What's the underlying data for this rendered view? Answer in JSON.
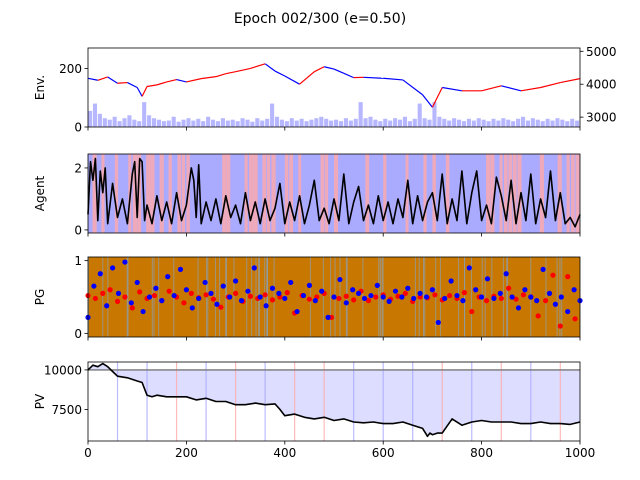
{
  "figure": {
    "title": "Epoch 002/300 (e=0.50)"
  },
  "colors": {
    "price_up": "#ff0000",
    "price_down": "#0000ff",
    "volume": "#aaaaff",
    "agent_line": "#000000",
    "agent_bg_a": "#aaaaff",
    "agent_bg_b": "#ffaaaa",
    "pg_bg": "#c87800",
    "pg_bg_alt": "#8ca0b4",
    "pg_red": "#ff0000",
    "pg_blue": "#0000ff",
    "pv_line": "#000000",
    "pv_fill": "#ddddff",
    "pv_ref": "#777777",
    "pv_vline_blue": "#aaaaff",
    "pv_vline_red": "#ffaaaa"
  },
  "chart_data": [
    {
      "id": "env",
      "type": "line",
      "ylabel": "Env.",
      "xlim": [
        0,
        1000
      ],
      "ylim_left": [
        0,
        270
      ],
      "left_ticks": [
        0,
        200
      ],
      "ylim_right": [
        2700,
        5100
      ],
      "right_ticks": [
        3000,
        4000,
        5000
      ],
      "series": [
        {
          "axis": "right",
          "style": "price",
          "x": [
            0,
            20,
            40,
            60,
            80,
            100,
            110,
            120,
            140,
            160,
            180,
            200,
            230,
            260,
            280,
            300,
            330,
            360,
            380,
            400,
            430,
            460,
            480,
            500,
            520,
            540,
            560,
            600,
            640,
            680,
            700,
            720,
            760,
            800,
            840,
            880,
            920,
            960,
            1000
          ],
          "values": [
            4180,
            4120,
            4220,
            4030,
            4050,
            3900,
            3630,
            3930,
            3980,
            4070,
            4140,
            4070,
            4170,
            4230,
            4320,
            4380,
            4480,
            4620,
            4400,
            4250,
            4000,
            4380,
            4530,
            4460,
            4330,
            4200,
            4210,
            4180,
            4130,
            3680,
            3300,
            3900,
            3800,
            3800,
            3950,
            3800,
            3900,
            4050,
            4170
          ]
        },
        {
          "axis": "left",
          "style": "volume",
          "x": [
            0,
            10,
            20,
            30,
            40,
            50,
            60,
            70,
            80,
            90,
            100,
            110,
            120,
            130,
            140,
            150,
            160,
            170,
            180,
            190,
            200,
            210,
            220,
            230,
            240,
            250,
            260,
            270,
            280,
            290,
            300,
            310,
            320,
            330,
            340,
            350,
            360,
            370,
            380,
            390,
            400,
            410,
            420,
            430,
            440,
            450,
            460,
            470,
            480,
            490,
            500,
            510,
            520,
            530,
            540,
            550,
            560,
            570,
            580,
            590,
            600,
            610,
            620,
            630,
            640,
            650,
            660,
            670,
            680,
            690,
            700,
            710,
            720,
            730,
            740,
            750,
            760,
            770,
            780,
            790,
            800,
            810,
            820,
            830,
            840,
            850,
            860,
            870,
            880,
            890,
            900,
            910,
            920,
            930,
            940,
            950,
            960,
            970,
            980,
            990
          ],
          "values": [
            55,
            80,
            45,
            30,
            25,
            35,
            20,
            30,
            40,
            25,
            20,
            85,
            40,
            30,
            25,
            20,
            22,
            35,
            18,
            25,
            30,
            22,
            28,
            20,
            35,
            25,
            20,
            30,
            22,
            25,
            20,
            30,
            25,
            18,
            30,
            22,
            28,
            80,
            35,
            25,
            20,
            30,
            22,
            28,
            20,
            25,
            30,
            35,
            28,
            22,
            25,
            20,
            30,
            22,
            28,
            85,
            30,
            35,
            25,
            20,
            28,
            22,
            30,
            25,
            35,
            20,
            28,
            80,
            30,
            25,
            85,
            35,
            28,
            22,
            30,
            25,
            20,
            28,
            22,
            30,
            25,
            20,
            28,
            22,
            30,
            25,
            20,
            28,
            35,
            22,
            30,
            25,
            20,
            28,
            22,
            30,
            25,
            20,
            28,
            22
          ]
        }
      ]
    },
    {
      "id": "agent",
      "type": "line",
      "ylabel": "Agent",
      "xlim": [
        0,
        1000
      ],
      "ylim": [
        -0.1,
        2.45
      ],
      "yticks": [
        0,
        2
      ],
      "series": [
        {
          "style": "agent",
          "x": [
            0,
            5,
            10,
            15,
            20,
            25,
            30,
            35,
            40,
            50,
            60,
            70,
            80,
            90,
            95,
            100,
            105,
            110,
            115,
            120,
            130,
            140,
            150,
            160,
            170,
            180,
            190,
            200,
            210,
            215,
            220,
            225,
            230,
            240,
            250,
            260,
            270,
            280,
            290,
            300,
            310,
            320,
            330,
            340,
            350,
            360,
            370,
            380,
            390,
            400,
            410,
            420,
            430,
            440,
            450,
            460,
            470,
            480,
            490,
            500,
            510,
            520,
            530,
            540,
            550,
            560,
            570,
            580,
            590,
            600,
            610,
            620,
            630,
            640,
            650,
            660,
            670,
            680,
            690,
            700,
            710,
            720,
            730,
            740,
            750,
            760,
            770,
            780,
            790,
            800,
            810,
            820,
            830,
            840,
            850,
            860,
            870,
            880,
            890,
            900,
            910,
            920,
            930,
            940,
            950,
            960,
            970,
            980,
            990,
            1000
          ],
          "values": [
            0.5,
            2.2,
            1.6,
            2.3,
            0.3,
            1.9,
            1.2,
            2.0,
            0.2,
            1.5,
            0.4,
            1.0,
            0.2,
            1.8,
            2.2,
            0.4,
            2.3,
            2.2,
            0.3,
            0.8,
            0.2,
            1.1,
            0.3,
            0.9,
            0.2,
            1.2,
            0.3,
            0.8,
            2.0,
            1.6,
            0.4,
            2.1,
            0.2,
            0.9,
            0.3,
            1.0,
            0.2,
            1.1,
            0.4,
            0.8,
            0.2,
            1.2,
            0.3,
            0.9,
            0.2,
            1.0,
            0.3,
            0.7,
            1.5,
            0.2,
            0.9,
            0.3,
            1.1,
            0.2,
            0.8,
            1.6,
            0.3,
            0.7,
            0.2,
            1.0,
            0.3,
            1.8,
            0.2,
            0.9,
            1.4,
            0.3,
            0.8,
            0.2,
            1.1,
            0.3,
            0.9,
            0.2,
            1.0,
            0.4,
            1.6,
            0.2,
            1.1,
            0.3,
            0.9,
            1.2,
            0.3,
            1.8,
            0.2,
            1.0,
            0.3,
            1.9,
            0.2,
            1.2,
            1.9,
            0.3,
            0.8,
            0.2,
            1.7,
            1.1,
            0.3,
            1.6,
            0.2,
            1.2,
            0.3,
            1.8,
            0.2,
            1.0,
            0.4,
            1.9,
            0.3,
            1.2,
            0.2,
            0.4,
            0.1,
            0.5
          ]
        }
      ]
    },
    {
      "id": "pg",
      "type": "scatter",
      "ylabel": "PG",
      "xlim": [
        0,
        1000
      ],
      "ylim": [
        -0.05,
        1.05
      ],
      "yticks": [
        0,
        1
      ],
      "series": [
        {
          "style": "red",
          "x": [
            0,
            15,
            30,
            45,
            60,
            75,
            90,
            105,
            120,
            135,
            150,
            165,
            180,
            195,
            210,
            225,
            240,
            255,
            270,
            285,
            300,
            315,
            330,
            345,
            360,
            375,
            390,
            405,
            420,
            435,
            450,
            465,
            480,
            495,
            510,
            525,
            540,
            555,
            570,
            585,
            600,
            615,
            630,
            645,
            660,
            675,
            690,
            705,
            720,
            735,
            750,
            765,
            780,
            795,
            810,
            825,
            840,
            855,
            870,
            885,
            900,
            915,
            930,
            945,
            960,
            975,
            990
          ],
          "values": [
            0.52,
            0.48,
            0.55,
            0.6,
            0.44,
            0.5,
            0.35,
            0.57,
            0.48,
            0.52,
            0.45,
            0.58,
            0.5,
            0.42,
            0.55,
            0.49,
            0.53,
            0.47,
            0.36,
            0.5,
            0.55,
            0.44,
            0.51,
            0.48,
            0.53,
            0.46,
            0.5,
            0.56,
            0.28,
            0.52,
            0.47,
            0.5,
            0.55,
            0.22,
            0.48,
            0.51,
            0.46,
            0.58,
            0.45,
            0.5,
            0.53,
            0.47,
            0.51,
            0.55,
            0.44,
            0.5,
            0.49,
            0.53,
            0.46,
            0.52,
            0.48,
            0.56,
            0.3,
            0.5,
            0.45,
            0.51,
            0.48,
            0.62,
            0.47,
            0.53,
            0.5,
            0.24,
            0.45,
            0.8,
            0.1,
            0.78,
            0.2
          ]
        },
        {
          "style": "blue",
          "x": [
            0,
            12,
            25,
            38,
            50,
            62,
            75,
            88,
            100,
            112,
            125,
            138,
            150,
            162,
            175,
            188,
            200,
            212,
            225,
            238,
            250,
            262,
            275,
            288,
            300,
            312,
            325,
            338,
            350,
            362,
            375,
            388,
            400,
            412,
            425,
            438,
            450,
            462,
            475,
            488,
            500,
            512,
            525,
            538,
            550,
            562,
            575,
            588,
            600,
            612,
            625,
            638,
            650,
            662,
            675,
            688,
            700,
            712,
            725,
            738,
            750,
            762,
            775,
            788,
            800,
            812,
            825,
            838,
            850,
            862,
            875,
            888,
            900,
            912,
            925,
            938,
            950,
            962,
            975,
            988,
            1000
          ],
          "values": [
            0.22,
            0.65,
            0.82,
            0.38,
            0.9,
            0.55,
            0.98,
            0.42,
            0.7,
            0.3,
            0.5,
            0.62,
            0.45,
            0.78,
            0.52,
            0.88,
            0.6,
            0.35,
            0.48,
            0.7,
            0.55,
            0.4,
            0.65,
            0.5,
            0.72,
            0.45,
            0.58,
            0.9,
            0.5,
            0.38,
            0.62,
            0.55,
            0.48,
            0.7,
            0.3,
            0.52,
            0.66,
            0.45,
            0.58,
            0.22,
            0.5,
            0.74,
            0.42,
            0.6,
            0.55,
            0.48,
            0.52,
            0.66,
            0.5,
            0.44,
            0.58,
            0.5,
            0.62,
            0.48,
            0.55,
            0.5,
            0.6,
            0.15,
            0.48,
            0.72,
            0.52,
            0.45,
            0.9,
            0.6,
            0.5,
            0.75,
            0.48,
            0.55,
            0.82,
            0.5,
            0.35,
            0.6,
            0.5,
            0.45,
            0.88,
            0.55,
            0.4,
            0.5,
            0.3,
            0.6,
            0.45
          ]
        }
      ]
    },
    {
      "id": "pv",
      "type": "line",
      "ylabel": "PV",
      "xlim": [
        0,
        1000
      ],
      "ylim": [
        5500,
        10500
      ],
      "yticks": [
        7500,
        10000
      ],
      "reference_value": 10000,
      "vlines_blue": [
        60,
        120,
        240,
        360,
        540,
        600,
        660,
        780,
        900
      ],
      "vlines_red": [
        180,
        300,
        420,
        480,
        720,
        840,
        960
      ],
      "series": [
        {
          "style": "pv",
          "x": [
            0,
            10,
            20,
            30,
            40,
            50,
            60,
            80,
            100,
            110,
            120,
            130,
            140,
            160,
            180,
            200,
            220,
            240,
            260,
            280,
            300,
            320,
            340,
            360,
            380,
            390,
            400,
            420,
            440,
            460,
            480,
            500,
            520,
            540,
            560,
            580,
            600,
            620,
            640,
            660,
            680,
            690,
            695,
            700,
            710,
            720,
            740,
            760,
            780,
            800,
            820,
            840,
            860,
            880,
            900,
            920,
            940,
            960,
            980,
            1000
          ],
          "values": [
            10000,
            10300,
            10200,
            10400,
            10200,
            9900,
            9600,
            9500,
            9300,
            9200,
            8400,
            8300,
            8400,
            8300,
            8300,
            8300,
            8100,
            8200,
            8000,
            8000,
            7800,
            7800,
            7900,
            7800,
            7850,
            7500,
            7100,
            7200,
            7000,
            6900,
            7000,
            6800,
            6900,
            6700,
            6650,
            6700,
            6600,
            6600,
            6700,
            6500,
            6300,
            5800,
            6000,
            5900,
            6000,
            6000,
            6900,
            6500,
            6700,
            6800,
            6700,
            6700,
            6700,
            6600,
            6600,
            6700,
            6600,
            6600,
            6550,
            6700
          ]
        }
      ]
    }
  ],
  "xticks": [
    0,
    200,
    400,
    600,
    800,
    1000
  ]
}
